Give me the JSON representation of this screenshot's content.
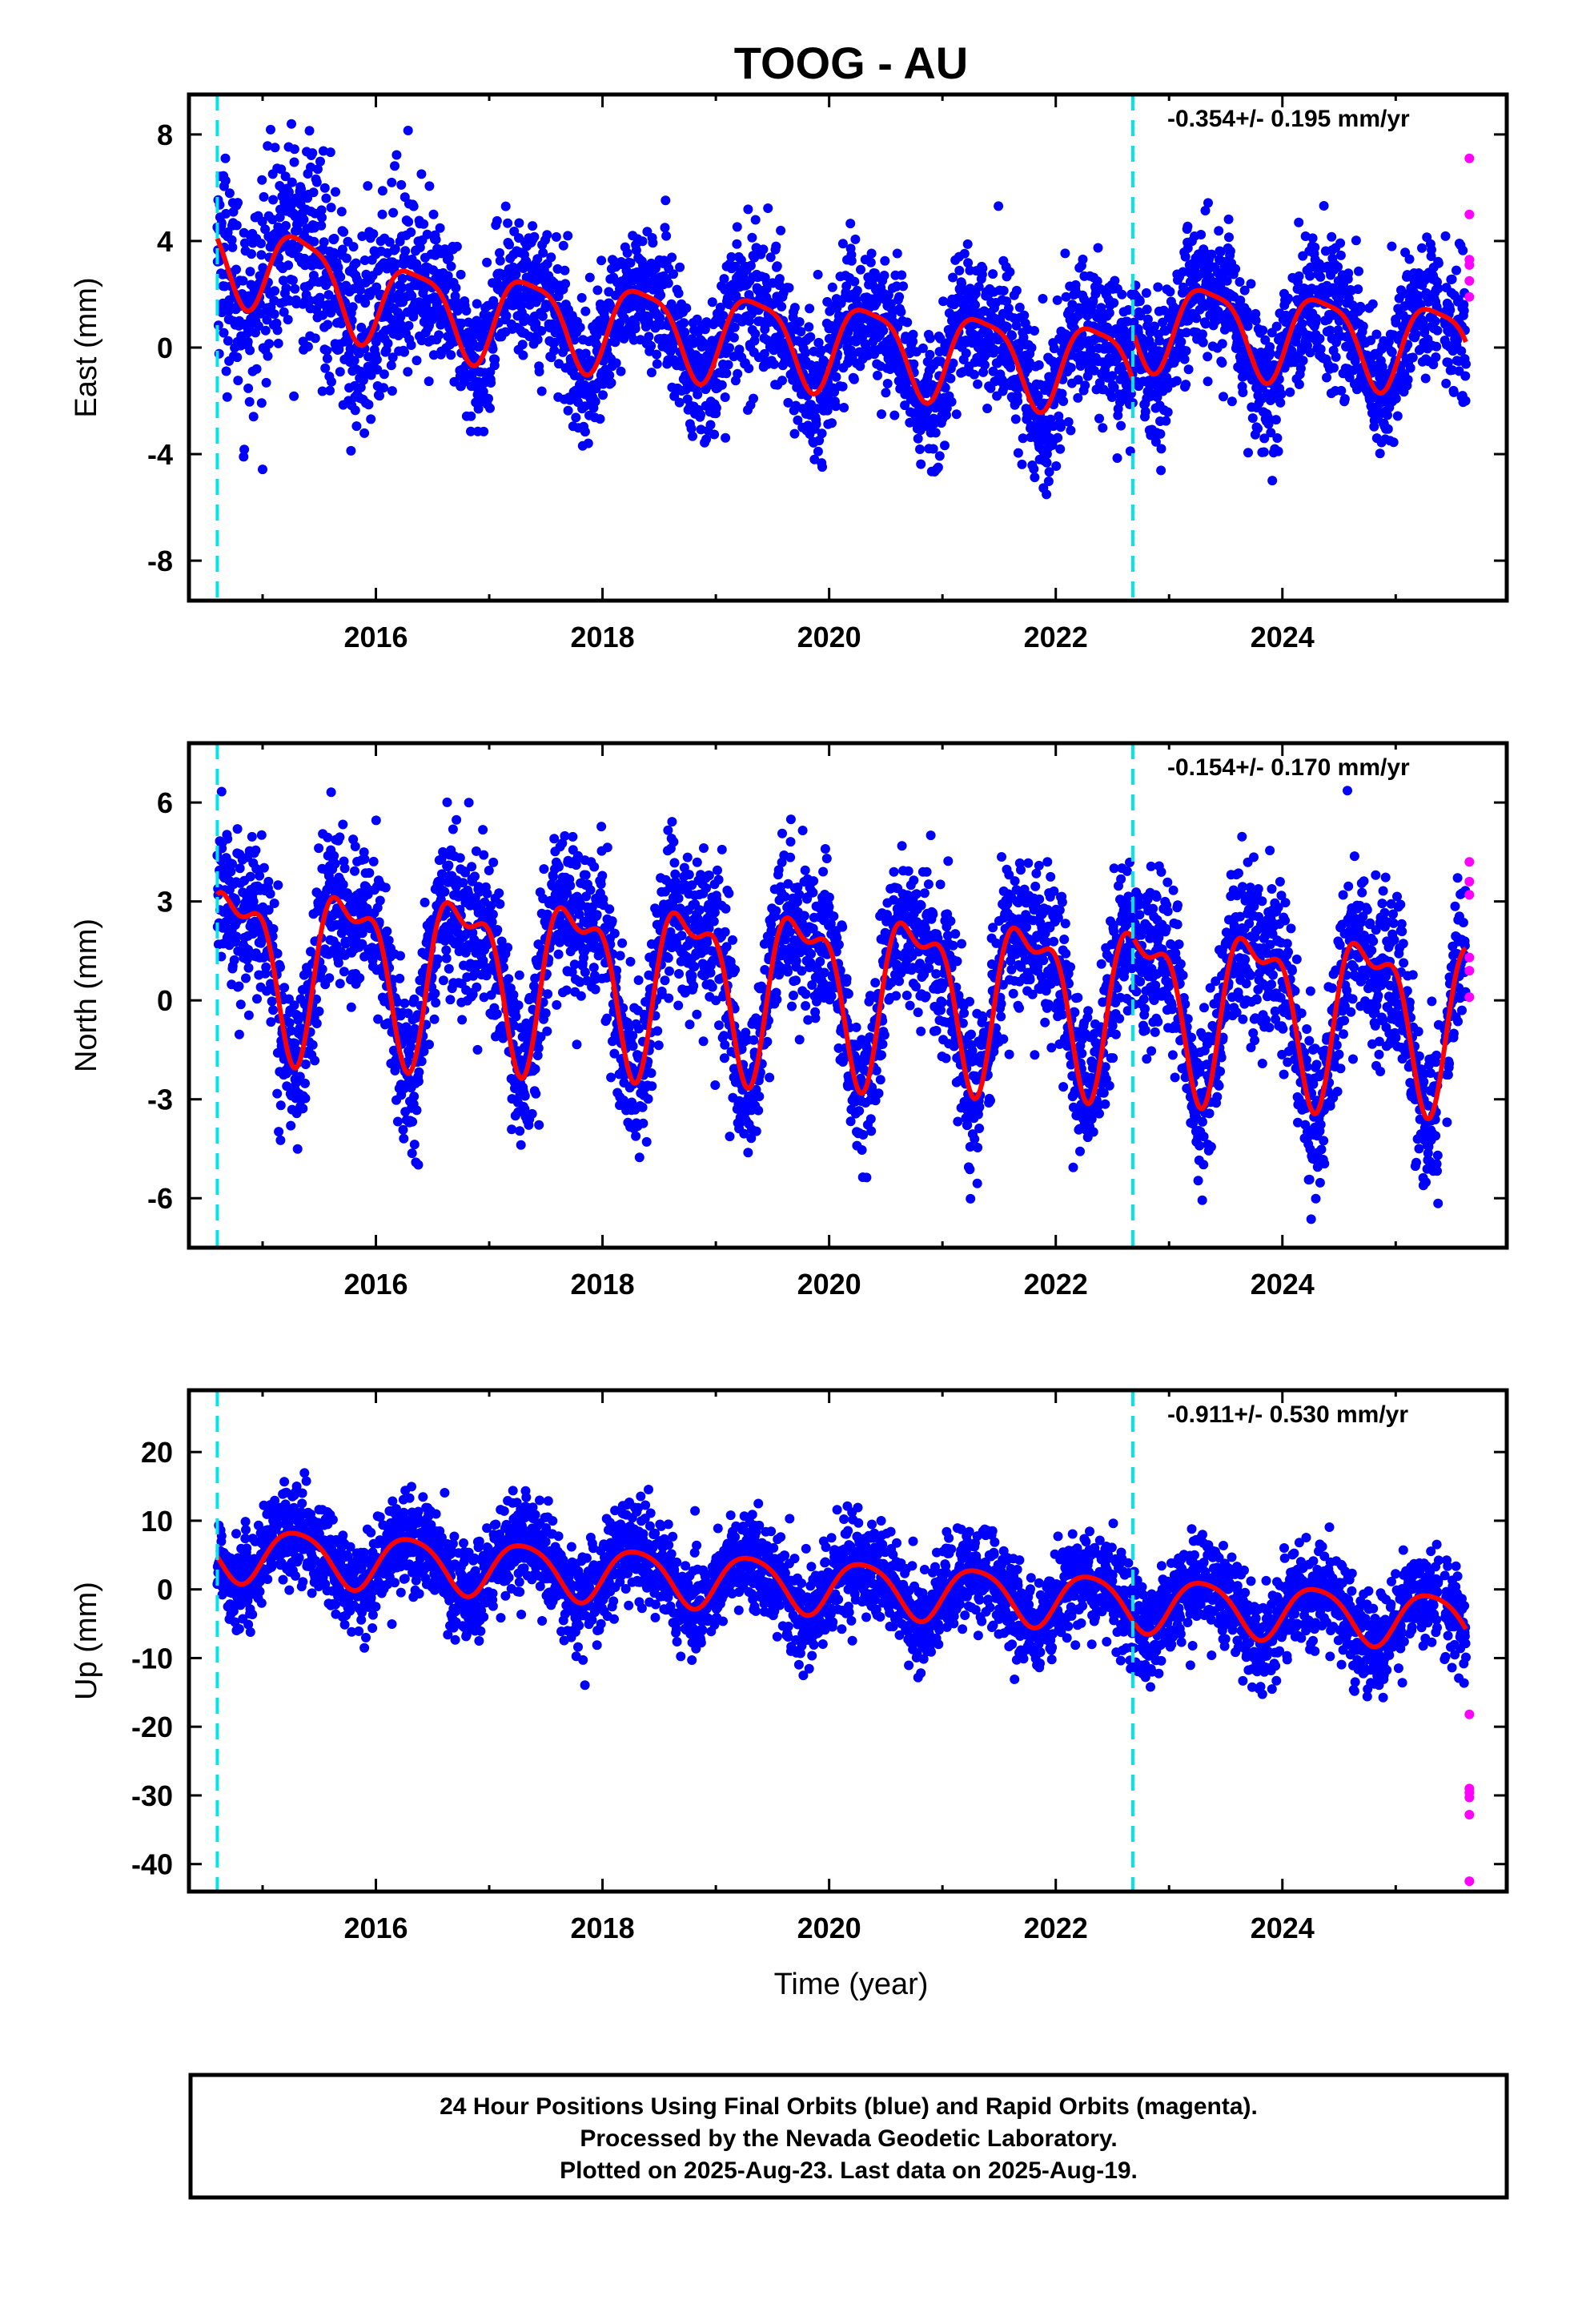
{
  "title": "TOOG - AU",
  "colors": {
    "final_orbits": "#0000ff",
    "rapid_orbits": "#ff00ff",
    "model": "#ff0000",
    "equipment_change": "#00e5ee",
    "frame": "#000000"
  },
  "xlabel": "Time (year)",
  "footer": {
    "line1": "24 Hour Positions Using Final Orbits (blue) and Rapid Orbits (magenta).",
    "line2": "Processed by the Nevada Geodetic Laboratory.",
    "line3": "Plotted on 2025-Aug-23. Last data on 2025-Aug-19."
  },
  "chart_data": [
    {
      "type": "scatter",
      "component": "east",
      "ylabel": "East (mm)",
      "rate_text": "-0.354+/- 0.195 mm/yr",
      "xlim": [
        2014.35,
        2025.98
      ],
      "ylim": [
        -9.5,
        9.5
      ],
      "xticks": [
        "2016",
        "2018",
        "2020",
        "2022",
        "2024"
      ],
      "yticks": [
        "8",
        "4",
        "0",
        "-4",
        "-8"
      ],
      "ytick_values": [
        8,
        4,
        0,
        -4,
        -8
      ],
      "grid": false,
      "equipment_changes": [
        2014.6,
        2022.68
      ],
      "model": {
        "intercept_2020": 0.2,
        "trend_mm_per_yr": -0.354,
        "annual_amp": 1.6,
        "annual_phase": 0.1,
        "semiannual_amp": 0.4,
        "offset_at_2022_68": 1.8,
        "extra_trend_before_2016_3": 1.6
      },
      "scatter_sd": 1.3,
      "data_span": [
        2014.6,
        2025.62
      ],
      "rapid_orbits": [
        7.1,
        5.0,
        3.3,
        3.1,
        2.5,
        1.9
      ]
    },
    {
      "type": "scatter",
      "component": "north",
      "ylabel": "North (mm)",
      "rate_text": "-0.154+/- 0.170 mm/yr",
      "xlim": [
        2014.35,
        2025.98
      ],
      "ylim": [
        -7.5,
        7.8
      ],
      "xticks": [
        "2016",
        "2018",
        "2020",
        "2022",
        "2024"
      ],
      "yticks": [
        "6",
        "3",
        "0",
        "-3",
        "-6"
      ],
      "ytick_values": [
        6,
        3,
        0,
        -3,
        -6
      ],
      "grid": false,
      "equipment_changes": [
        2014.6,
        2022.68
      ],
      "model": {
        "intercept_2020": 0.5,
        "trend_mm_per_yr": -0.154,
        "annual_amp": 2.3,
        "annual_phase": 0.52,
        "semiannual_amp": 1.0,
        "offset_at_2022_68": 0.0
      },
      "scatter_sd": 1.2,
      "data_span": [
        2014.6,
        2025.62
      ],
      "rapid_orbits": [
        4.2,
        3.6,
        3.2,
        1.3,
        0.9,
        0.1
      ]
    },
    {
      "type": "scatter",
      "component": "up",
      "ylabel": "Up (mm)",
      "rate_text": "-0.911+/- 0.530 mm/yr",
      "xlim": [
        2014.35,
        2025.98
      ],
      "ylim": [
        -44,
        29
      ],
      "xticks": [
        "2016",
        "2018",
        "2020",
        "2022",
        "2024"
      ],
      "yticks": [
        "20",
        "10",
        "0",
        "-10",
        "-20",
        "-30",
        "-40"
      ],
      "ytick_values": [
        20,
        10,
        0,
        -10,
        -20,
        -30,
        -40
      ],
      "grid": false,
      "equipment_changes": [
        2014.6,
        2022.68
      ],
      "model": {
        "intercept_2020": 0.5,
        "trend_mm_per_yr": -0.911,
        "annual_amp": 3.9,
        "annual_phase": 0.05,
        "semiannual_amp": 0.6,
        "offset_at_2022_68": 0.0
      },
      "scatter_sd": 3.5,
      "data_span": [
        2014.6,
        2025.62
      ],
      "rapid_orbits": [
        -18.2,
        -29.0,
        -29.6,
        -30.3,
        -32.8,
        -42.5
      ]
    }
  ]
}
